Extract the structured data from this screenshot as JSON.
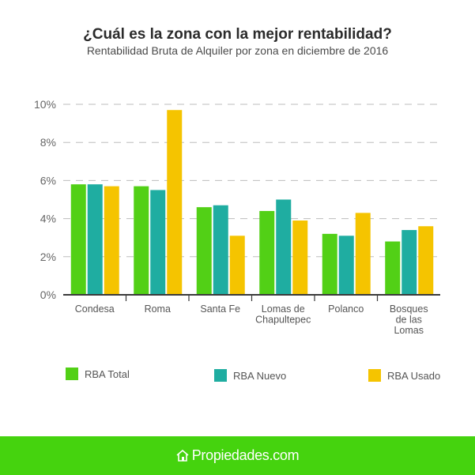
{
  "colors": {
    "total": "#52d016",
    "nuevo": "#1fada1",
    "usado": "#f5c400",
    "grid": "#bdbdbd",
    "footer": "#45d30e"
  },
  "chart_data": {
    "type": "bar",
    "title": "¿Cuál es la zona con la mejor rentabilidad?",
    "subtitle": "Rentabilidad Bruta de Alquiler por zona en diciembre de 2016",
    "xlabel": "",
    "ylabel": "",
    "ylim": [
      0,
      10
    ],
    "yticks": [
      "0%",
      "2%",
      "4%",
      "6%",
      "8%",
      "10%"
    ],
    "categories": [
      [
        "Condesa"
      ],
      [
        "Roma"
      ],
      [
        "Santa Fe"
      ],
      [
        "Lomas de",
        "Chapultepec"
      ],
      [
        "Polanco"
      ],
      [
        "Bosques",
        "de las",
        "Lomas"
      ]
    ],
    "series": [
      {
        "name": "RBA Total",
        "color_key": "total",
        "values": [
          5.8,
          5.7,
          4.6,
          4.4,
          3.2,
          2.8
        ]
      },
      {
        "name": "RBA Nuevo",
        "color_key": "nuevo",
        "values": [
          5.8,
          5.5,
          4.7,
          5.0,
          3.1,
          3.4
        ]
      },
      {
        "name": "RBA Usado",
        "color_key": "usado",
        "values": [
          5.7,
          9.7,
          3.1,
          3.9,
          4.3,
          3.6
        ]
      }
    ],
    "grid": true,
    "legend": "bottom"
  },
  "footer": {
    "brand": "Propiedades.com",
    "icon": "house-logo-icon"
  }
}
